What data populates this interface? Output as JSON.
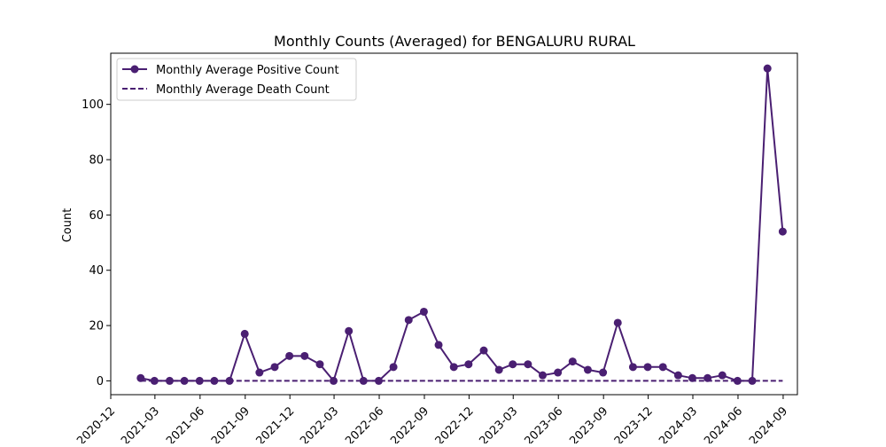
{
  "chart_data": {
    "type": "line",
    "title": "Monthly Counts (Averaged) for BENGALURU RURAL",
    "xlabel": "",
    "ylabel": "Count",
    "x_tick_labels": [
      "2020-12",
      "2021-03",
      "2021-06",
      "2021-09",
      "2021-12",
      "2022-03",
      "2022-06",
      "2022-09",
      "2022-12",
      "2023-03",
      "2023-06",
      "2023-09",
      "2023-12",
      "2024-03",
      "2024-06",
      "2024-09"
    ],
    "y_ticks": [
      0,
      20,
      40,
      60,
      80,
      100
    ],
    "ylim": [
      -5,
      118.5
    ],
    "xlim": [
      "2020-12-01",
      "2024-09-30"
    ],
    "legend_position": "top-left",
    "grid": false,
    "x": [
      "2021-01-31",
      "2021-02-28",
      "2021-03-31",
      "2021-04-30",
      "2021-05-31",
      "2021-06-30",
      "2021-07-31",
      "2021-08-31",
      "2021-09-30",
      "2021-10-31",
      "2021-11-30",
      "2021-12-31",
      "2022-01-31",
      "2022-02-28",
      "2022-03-31",
      "2022-04-30",
      "2022-05-31",
      "2022-06-30",
      "2022-07-31",
      "2022-08-31",
      "2022-09-30",
      "2022-10-31",
      "2022-11-30",
      "2022-12-31",
      "2023-01-31",
      "2023-02-28",
      "2023-03-31",
      "2023-04-30",
      "2023-05-31",
      "2023-06-30",
      "2023-07-31",
      "2023-08-31",
      "2023-09-30",
      "2023-10-31",
      "2023-11-30",
      "2023-12-31",
      "2024-01-31",
      "2024-02-29",
      "2024-03-31",
      "2024-04-30",
      "2024-05-31",
      "2024-06-30",
      "2024-07-31",
      "2024-08-31"
    ],
    "series": [
      {
        "name": "Monthly Average Positive Count",
        "color": "#4a1f72",
        "style": "solid-markers",
        "values": [
          1,
          0,
          0,
          0,
          0,
          0,
          0,
          17,
          3,
          5,
          9,
          9,
          6,
          0,
          18,
          0,
          0,
          5,
          22,
          25,
          13,
          5,
          6,
          11,
          4,
          6,
          6,
          2,
          3,
          7,
          4,
          3,
          21,
          5,
          5,
          5,
          2,
          1,
          1,
          2,
          0,
          0,
          113,
          54
        ]
      },
      {
        "name": "Monthly Average Death Count",
        "color": "#4a1f72",
        "style": "dashed",
        "values": [
          0,
          0,
          0,
          0,
          0,
          0,
          0,
          0,
          0,
          0,
          0,
          0,
          0,
          0,
          0,
          0,
          0,
          0,
          0,
          0,
          0,
          0,
          0,
          0,
          0,
          0,
          0,
          0,
          0,
          0,
          0,
          0,
          0,
          0,
          0,
          0,
          0,
          0,
          0,
          0,
          0,
          0,
          0,
          0
        ]
      }
    ]
  }
}
